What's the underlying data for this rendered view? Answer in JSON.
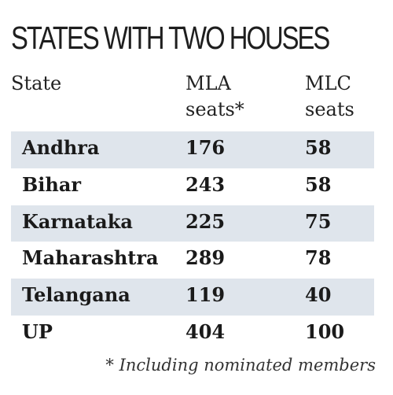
{
  "chart_data": {
    "type": "table",
    "title": "STATES WITH TWO HOUSES",
    "headers": {
      "state": "State",
      "mla_line1": "MLA",
      "mla_line2": "seats*",
      "mlc_line1": "MLC",
      "mlc_line2": "seats"
    },
    "rows": [
      {
        "state": "Andhra",
        "mla": "176",
        "mlc": "58"
      },
      {
        "state": "Bihar",
        "mla": "243",
        "mlc": "58"
      },
      {
        "state": "Karnataka",
        "mla": "225",
        "mlc": "75"
      },
      {
        "state": "Maharashtra",
        "mla": "289",
        "mlc": "78"
      },
      {
        "state": "Telangana",
        "mla": "119",
        "mlc": "40"
      },
      {
        "state": "UP",
        "mla": "404",
        "mlc": "100"
      }
    ],
    "footnote": "* Including nominated members",
    "row_shading_color": "#dfe5ec"
  }
}
